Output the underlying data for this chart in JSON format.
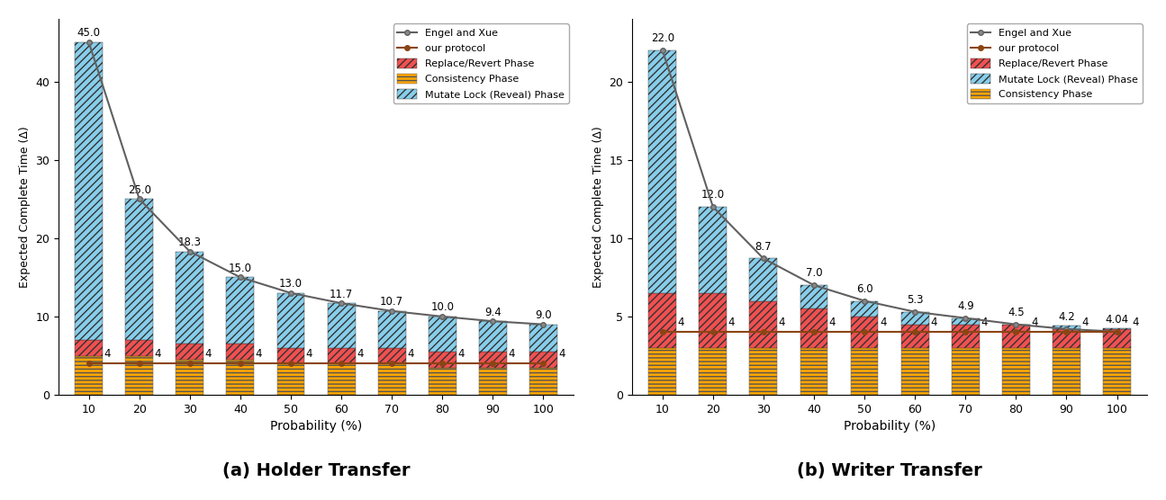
{
  "probabilities": [
    10,
    20,
    30,
    40,
    50,
    60,
    70,
    80,
    90,
    100
  ],
  "holder": {
    "engel_xue": [
      45.0,
      25.0,
      18.3,
      15.0,
      13.0,
      11.7,
      10.7,
      10.0,
      9.4,
      9.0
    ],
    "our_protocol_val": 4,
    "consistency": [
      5.0,
      5.0,
      4.5,
      4.5,
      4.0,
      4.0,
      4.0,
      3.5,
      3.5,
      3.5
    ],
    "replace_revert": [
      2.0,
      2.0,
      2.0,
      2.0,
      2.0,
      2.0,
      2.0,
      2.0,
      2.0,
      2.0
    ],
    "mutate_lock_extra": [
      38.0,
      18.0,
      11.8,
      8.5,
      7.0,
      5.7,
      4.7,
      4.5,
      3.9,
      3.5
    ],
    "engel_labels": [
      "45.0",
      "25.0",
      "18.3",
      "15.0",
      "13.0",
      "11.7",
      "10.7",
      "10.0",
      "9.4",
      "9.0"
    ],
    "our_labels": [
      "4",
      "4",
      "4",
      "4",
      "4",
      "4",
      "4",
      "4",
      "4",
      "4"
    ],
    "title": "(a) Holder Transfer",
    "ylim": [
      0,
      48
    ],
    "yticks": [
      0,
      10,
      20,
      30,
      40
    ],
    "legend_order": [
      "engel_xue",
      "our_protocol",
      "replace_revert",
      "consistency",
      "mutate_lock"
    ]
  },
  "writer": {
    "engel_xue": [
      22.0,
      12.0,
      8.7,
      7.0,
      6.0,
      5.3,
      4.9,
      4.5,
      4.2,
      4.04
    ],
    "our_protocol_val": 4,
    "consistency": [
      3.0,
      3.0,
      3.0,
      3.0,
      3.0,
      3.0,
      3.0,
      3.0,
      3.0,
      3.0
    ],
    "replace_revert": [
      3.5,
      3.5,
      3.0,
      2.5,
      2.0,
      1.5,
      1.5,
      1.5,
      1.2,
      1.2
    ],
    "mutate_lock_extra": [
      15.5,
      5.5,
      2.7,
      1.5,
      1.0,
      0.8,
      0.4,
      0.0,
      0.2,
      0.04
    ],
    "engel_labels": [
      "22.0",
      "12.0",
      "8.7",
      "7.0",
      "6.0",
      "5.3",
      "4.9",
      "4.5",
      "4.2",
      "4.04"
    ],
    "our_labels": [
      "4",
      "4",
      "4",
      "4",
      "4",
      "4",
      "4",
      "4",
      "4",
      "4"
    ],
    "title": "(b) Writer Transfer",
    "ylim": [
      0,
      24
    ],
    "yticks": [
      0,
      5,
      10,
      15,
      20
    ],
    "legend_order": [
      "engel_xue",
      "our_protocol",
      "replace_revert",
      "mutate_lock",
      "consistency"
    ]
  },
  "colors": {
    "replace_revert_color": "#F05050",
    "consistency_color": "#FFA500",
    "mutate_lock_color": "#87CEEB",
    "engel_xue_line": "#606060",
    "our_protocol_line": "#8B4513"
  },
  "xlabel": "Probability (%)",
  "ylabel": "Expected Complete Time (Δ)",
  "bar_width": 5.5
}
